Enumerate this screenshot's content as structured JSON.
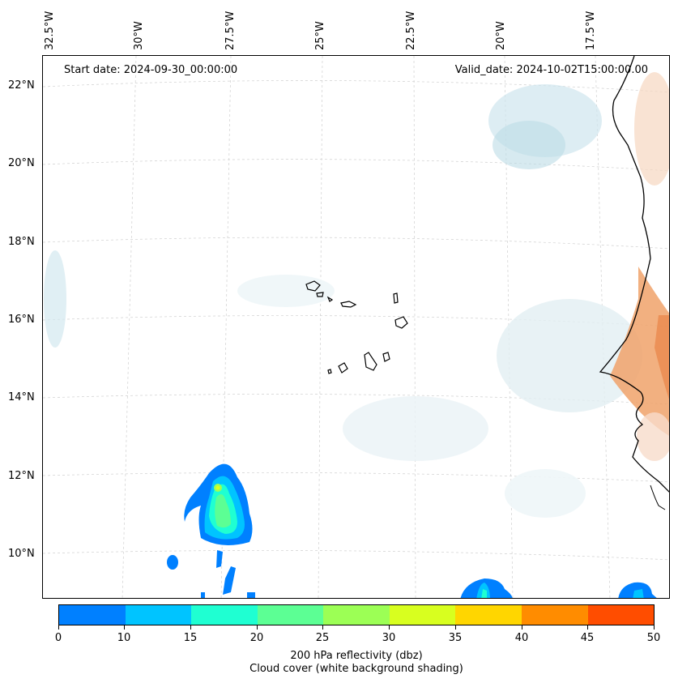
{
  "map": {
    "start_date": "Start date: 2024-09-30_00:00:00",
    "valid_date": "Valid_date: 2024-10-02T15:00:00.00",
    "longitude_labels": [
      "32.5°W",
      "30°W",
      "27.5°W",
      "25°W",
      "22.5°W",
      "20°W",
      "17.5°W"
    ],
    "latitude_labels": [
      "22°N",
      "20°N",
      "18°N",
      "16°N",
      "14°N",
      "12°N",
      "10°N"
    ],
    "region": "Cape Verde and West African coast",
    "layers": [
      "200 hPa reflectivity",
      "cloud cover",
      "coastline",
      "graticule"
    ]
  },
  "colorbar": {
    "ticks": [
      "0",
      "10",
      "15",
      "20",
      "25",
      "30",
      "35",
      "40",
      "45",
      "50"
    ],
    "colors": [
      "#0080ff",
      "#00c4ff",
      "#1fffd2",
      "#5cff94",
      "#9cff55",
      "#d8ff1f",
      "#ffd600",
      "#ff8c00",
      "#ff4d00"
    ],
    "title_line1": "200 hPa reflectivity (dbz)",
    "title_line2": "Cloud cover (white background shading)"
  }
}
